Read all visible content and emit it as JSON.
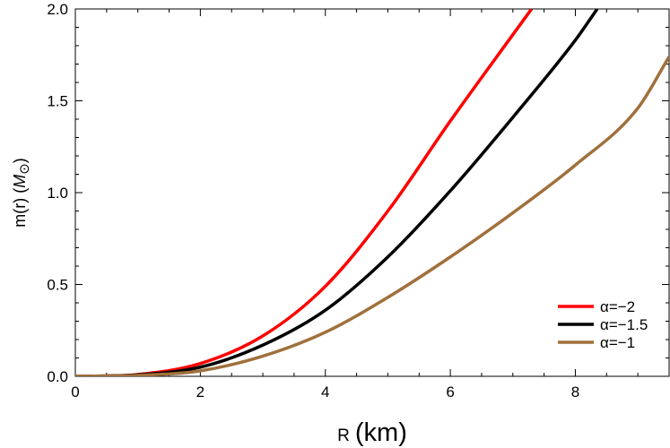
{
  "chart_data": {
    "type": "line",
    "title": "",
    "xlabel": "R (km)",
    "ylabel": "m(r) (M⊙)",
    "xlim": [
      0,
      9.5
    ],
    "ylim": [
      0,
      2.0
    ],
    "x_ticks": [
      0,
      2,
      4,
      6,
      8
    ],
    "x_tick_labels": [
      "0",
      "2",
      "4",
      "6",
      "8"
    ],
    "y_ticks": [
      0,
      0.5,
      1.0,
      1.5,
      2.0
    ],
    "y_tick_labels": [
      "0.0",
      "0.5",
      "1.0",
      "1.5",
      "2.0"
    ],
    "grid": false,
    "legend_position": "bottom-right",
    "series": [
      {
        "name": "α=−2",
        "color": "#ff0000",
        "x": [
          0,
          1,
          2,
          3,
          4,
          5,
          6,
          7,
          7.3
        ],
        "values": [
          0,
          0.01,
          0.07,
          0.22,
          0.49,
          0.9,
          1.39,
          1.86,
          2.0
        ]
      },
      {
        "name": "α=−1.5",
        "color": "#000000",
        "x": [
          0,
          1,
          2,
          3,
          4,
          5,
          6,
          7,
          8,
          8.35
        ],
        "values": [
          0,
          0.008,
          0.05,
          0.17,
          0.36,
          0.65,
          1.01,
          1.41,
          1.83,
          2.0
        ]
      },
      {
        "name": "α=−1",
        "color": "#a0703c",
        "x": [
          0,
          1,
          2,
          3,
          4,
          5,
          6,
          7,
          8,
          9,
          9.5
        ],
        "values": [
          0,
          0.005,
          0.03,
          0.11,
          0.24,
          0.43,
          0.65,
          0.89,
          1.15,
          1.46,
          1.74
        ]
      }
    ]
  }
}
